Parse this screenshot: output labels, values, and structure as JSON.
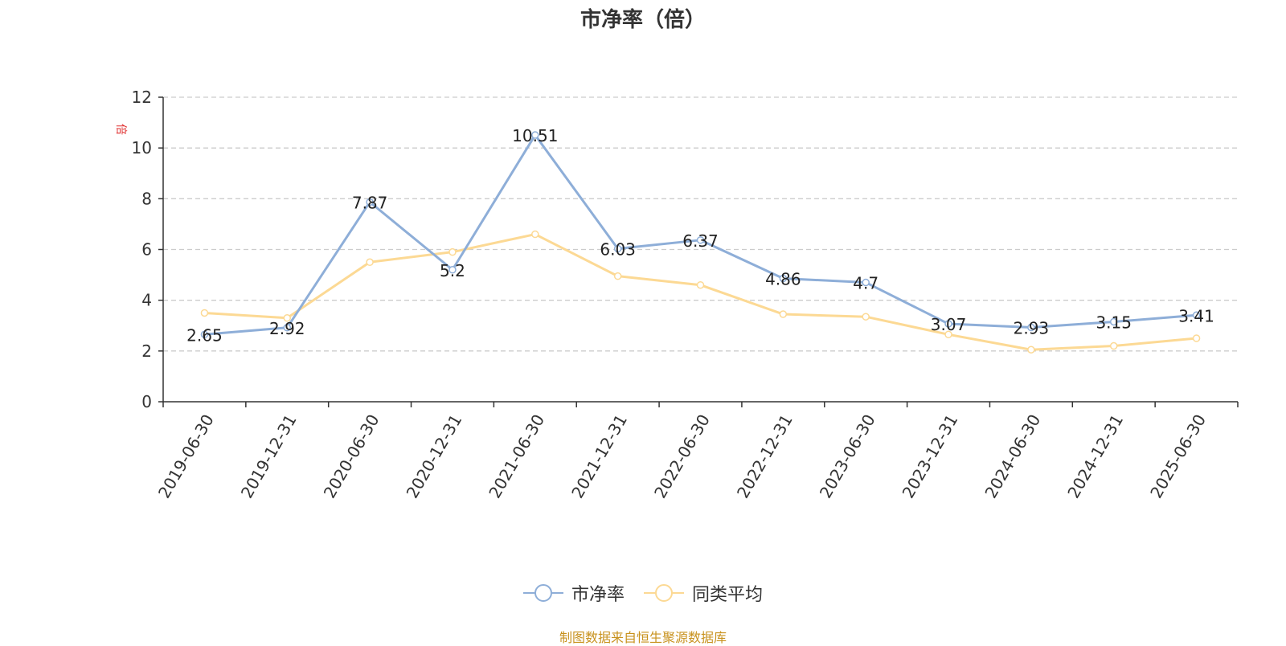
{
  "colors": {
    "series1": "#8eaed8",
    "series2": "#fcd994",
    "unit": "#e03030",
    "source": "#c8921e"
  },
  "legend": {
    "item1": "市净率",
    "item2": "同类平均"
  },
  "source_text": "制图数据来自恒生聚源数据库",
  "chart_data": {
    "type": "line",
    "title": "市净率（倍）",
    "ylabel": "倍",
    "xlabel": "",
    "ylim": [
      0,
      12
    ],
    "yticks": [
      0,
      2,
      4,
      6,
      8,
      10,
      12
    ],
    "grid": true,
    "legend_position": "bottom",
    "categories": [
      "2019-06-30",
      "2019-12-31",
      "2020-06-30",
      "2020-12-31",
      "2021-06-30",
      "2021-12-31",
      "2022-06-30",
      "2022-12-31",
      "2023-06-30",
      "2023-12-31",
      "2024-06-30",
      "2024-12-31",
      "2025-06-30"
    ],
    "series": [
      {
        "name": "市净率",
        "values": [
          2.65,
          2.92,
          7.87,
          5.2,
          10.51,
          6.03,
          6.37,
          4.86,
          4.7,
          3.07,
          2.93,
          3.15,
          3.41
        ],
        "data_labels": [
          "2.65",
          "2.92",
          "7.87",
          "5.2",
          "10.51",
          "6.03",
          "6.37",
          "4.86",
          "4.7",
          "3.07",
          "2.93",
          "3.15",
          "3.41"
        ]
      },
      {
        "name": "同类平均",
        "values": [
          3.5,
          3.3,
          5.5,
          5.9,
          6.6,
          4.95,
          4.6,
          3.45,
          3.35,
          2.65,
          2.05,
          2.2,
          2.5
        ]
      }
    ]
  }
}
